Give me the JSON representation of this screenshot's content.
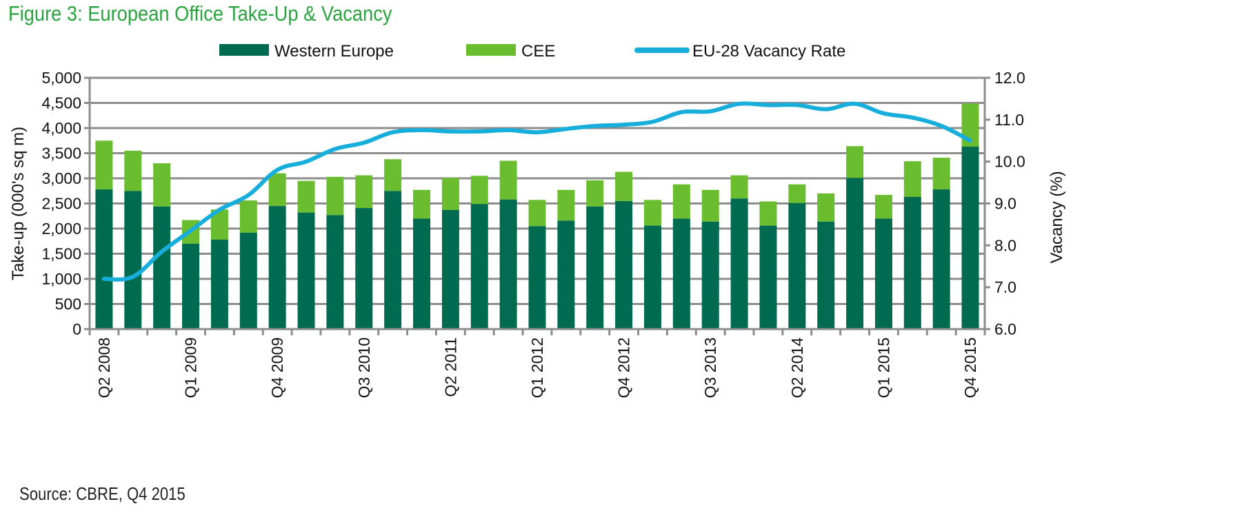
{
  "chart_data": {
    "type": "bar",
    "stacked": true,
    "title": "Figure  3:  European Office Take-Up & Vacancy",
    "source": "Source: CBRE, Q4 2015",
    "ylabel": "Take-up (000's sq m)",
    "y2label": "Vacancy (%)",
    "ylim": [
      0,
      5000
    ],
    "yticks": [
      0,
      500,
      1000,
      1500,
      2000,
      2500,
      3000,
      3500,
      4000,
      4500,
      5000
    ],
    "ytick_labels": [
      "0",
      "500",
      "1,000",
      "1,500",
      "2,000",
      "2,500",
      "3,000",
      "3,500",
      "4,000",
      "4,500",
      "5,000"
    ],
    "y2lim": [
      6.0,
      12.0
    ],
    "y2ticks": [
      6.0,
      7.0,
      8.0,
      9.0,
      10.0,
      11.0,
      12.0
    ],
    "y2tick_labels": [
      "6.0",
      "7.0",
      "8.0",
      "9.0",
      "10.0",
      "11.0",
      "12.0"
    ],
    "grid": true,
    "legend_position": "top",
    "categories": [
      "Q2 2008",
      "Q3 2008",
      "Q4 2008",
      "Q1 2009",
      "Q2 2009",
      "Q3 2009",
      "Q4 2009",
      "Q1 2010",
      "Q2 2010",
      "Q3 2010",
      "Q4 2010",
      "Q1 2011",
      "Q2 2011",
      "Q3 2011",
      "Q4 2011",
      "Q1 2012",
      "Q2 2012",
      "Q3 2012",
      "Q4 2012",
      "Q1 2013",
      "Q2 2013",
      "Q3 2013",
      "Q4 2013",
      "Q1 2014",
      "Q2 2014",
      "Q3 2014",
      "Q4 2014",
      "Q1 2015",
      "Q2 2015",
      "Q3 2015",
      "Q4 2015"
    ],
    "x_tick_labels": [
      {
        "index": 0,
        "label": "Q2 2008"
      },
      {
        "index": 3,
        "label": "Q1 2009"
      },
      {
        "index": 6,
        "label": "Q4 2009"
      },
      {
        "index": 9,
        "label": "Q3 2010"
      },
      {
        "index": 12,
        "label": "Q2 2011"
      },
      {
        "index": 15,
        "label": "Q1 2012"
      },
      {
        "index": 18,
        "label": "Q4 2012"
      },
      {
        "index": 21,
        "label": "Q3 2013"
      },
      {
        "index": 24,
        "label": "Q2 2014"
      },
      {
        "index": 27,
        "label": "Q1 2015"
      },
      {
        "index": 30,
        "label": "Q4 2015"
      }
    ],
    "series": [
      {
        "name": "Western Europe",
        "type": "bar",
        "axis": "left",
        "color": "#006b4f",
        "values": [
          2780,
          2750,
          2440,
          1700,
          1780,
          1920,
          2450,
          2320,
          2270,
          2410,
          2750,
          2200,
          2370,
          2490,
          2580,
          2050,
          2160,
          2440,
          2550,
          2060,
          2200,
          2140,
          2600,
          2060,
          2510,
          2140,
          3010,
          2200,
          2630,
          2780,
          3630
        ]
      },
      {
        "name": "CEE",
        "type": "bar",
        "axis": "left",
        "color": "#6abd2e",
        "values": [
          970,
          800,
          860,
          470,
          600,
          640,
          650,
          630,
          760,
          650,
          630,
          570,
          640,
          560,
          770,
          520,
          610,
          520,
          580,
          510,
          680,
          630,
          460,
          480,
          370,
          560,
          630,
          470,
          710,
          630,
          860
        ]
      },
      {
        "name": "EU-28 Vacancy Rate",
        "type": "line",
        "axis": "right",
        "color": "#18aedb",
        "values": [
          7.2,
          7.25,
          7.85,
          8.35,
          8.85,
          9.2,
          9.8,
          10.0,
          10.3,
          10.45,
          10.7,
          10.75,
          10.72,
          10.72,
          10.75,
          10.7,
          10.78,
          10.85,
          10.88,
          10.95,
          11.18,
          11.2,
          11.38,
          11.35,
          11.35,
          11.25,
          11.38,
          11.15,
          11.05,
          10.85,
          10.5
        ]
      }
    ]
  }
}
